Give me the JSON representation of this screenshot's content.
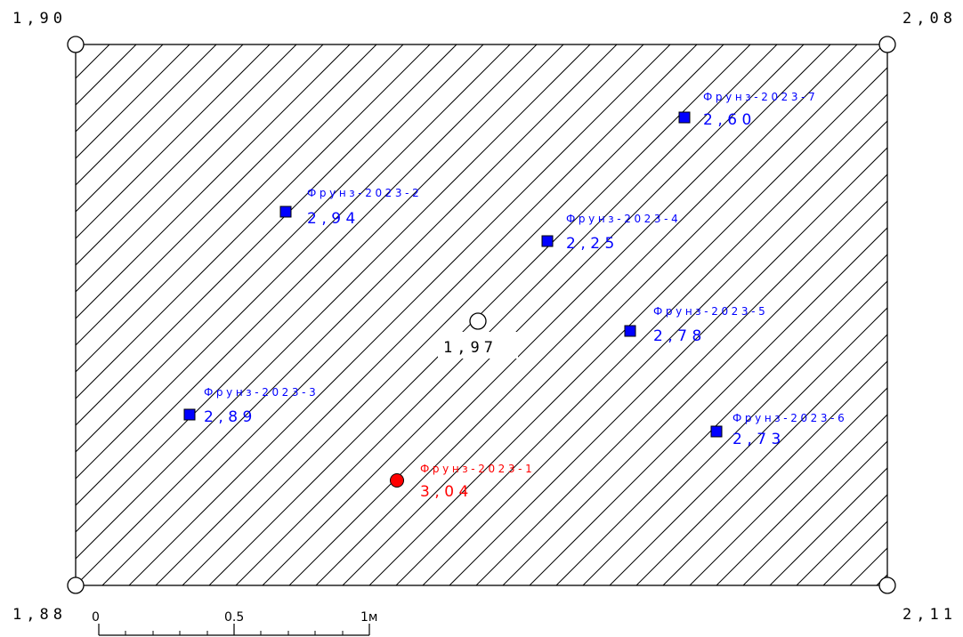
{
  "colors": {
    "hatch": "#000000",
    "measured": "#0000ff",
    "highlight": "#ff0000",
    "marker_blue": "#0000ff",
    "marker_red": "#ff0000"
  },
  "corners": {
    "top_left": "1,90",
    "top_right": "2,08",
    "bottom_left": "1,88",
    "bottom_right": "2,11"
  },
  "center": {
    "value": "1,97"
  },
  "points": [
    {
      "id": "p7",
      "label": "Фрунз-2023-7",
      "value": "2,60",
      "color": "#0000ff",
      "shape": "square"
    },
    {
      "id": "p2",
      "label": "Фрунз-2023-2",
      "value": "2,94",
      "color": "#0000ff",
      "shape": "square"
    },
    {
      "id": "p4",
      "label": "Фрунз-2023-4",
      "value": "2,25",
      "color": "#0000ff",
      "shape": "square"
    },
    {
      "id": "p5",
      "label": "Фрунз-2023-5",
      "value": "2,78",
      "color": "#0000ff",
      "shape": "square"
    },
    {
      "id": "p3",
      "label": "Фрунз-2023-3",
      "value": "2,89",
      "color": "#0000ff",
      "shape": "square"
    },
    {
      "id": "p6",
      "label": "Фрунз-2023-6",
      "value": "2,73",
      "color": "#0000ff",
      "shape": "square"
    },
    {
      "id": "p1",
      "label": "Фрунз-2023-1",
      "value": "3,04",
      "color": "#ff0000",
      "shape": "circle"
    }
  ],
  "scale": {
    "ticks": [
      "0",
      "0.5",
      "1м"
    ]
  }
}
